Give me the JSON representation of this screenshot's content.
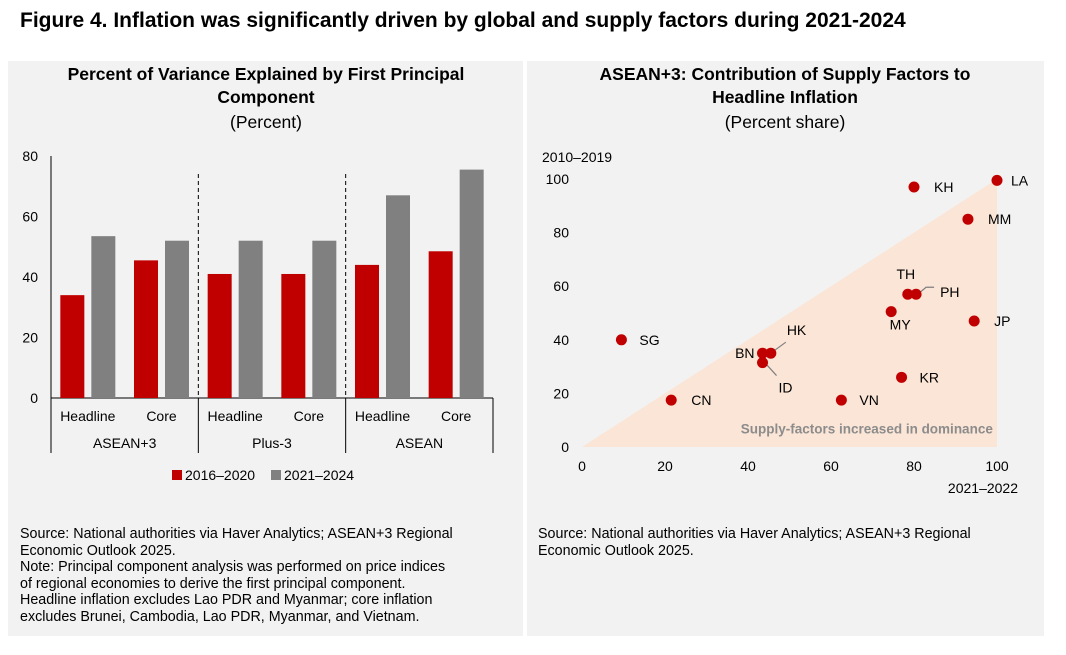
{
  "figure_title": "Figure 4. Inflation was significantly driven by global and supply factors during 2021-2024",
  "left": {
    "title_line1": "Percent of Variance Explained by First Principal",
    "title_line2": "Component",
    "subtitle": "(Percent)",
    "source_line1": "Source: National authorities via Haver Analytics; ASEAN+3 Regional",
    "source_line2": "Economic Outlook 2025.",
    "note_line1": "Note: Principal component analysis was performed on price indices",
    "note_line2": "of regional economies to derive the first principal component.",
    "note_line3": "Headline inflation excludes Lao PDR and Myanmar; core inflation",
    "note_line4": "excludes Brunei, Cambodia, Lao PDR, Myanmar, and Vietnam."
  },
  "right": {
    "title_line1": "ASEAN+3: Contribution of Supply Factors to",
    "title_line2": "Headline Inflation",
    "subtitle": "(Percent share)",
    "source_line1": "Source: National authorities via Haver Analytics; ASEAN+3 Regional",
    "source_line2": "Economic Outlook 2025."
  },
  "chart_data": [
    {
      "type": "bar",
      "title": "Percent of Variance Explained by First Principal Component",
      "ylabel": "(Percent)",
      "ylim": [
        0,
        80
      ],
      "yticks": [
        0,
        20,
        40,
        60,
        80
      ],
      "groups": [
        "ASEAN+3",
        "Plus-3",
        "ASEAN"
      ],
      "categories": [
        "Headline",
        "Core",
        "Headline",
        "Core",
        "Headline",
        "Core"
      ],
      "series": [
        {
          "name": "2016–2020",
          "color": "#c00000",
          "values": [
            34,
            45.5,
            41,
            41,
            44,
            48.5
          ]
        },
        {
          "name": "2021–2024",
          "color": "#808080",
          "values": [
            53.5,
            52,
            52,
            52,
            67,
            75.5
          ]
        }
      ],
      "legend": "bottom"
    },
    {
      "type": "scatter",
      "title": "ASEAN+3: Contribution of Supply Factors to Headline Inflation",
      "subtitle": "(Percent share)",
      "xlabel": "2021–2022",
      "ylabel": "2010–2019",
      "xlim": [
        0,
        100
      ],
      "ylim": [
        0,
        100
      ],
      "xticks": [
        0,
        20,
        40,
        60,
        80,
        100
      ],
      "yticks": [
        0,
        20,
        40,
        60,
        80,
        100
      ],
      "color": "#c00000",
      "shaded_region_label": "Supply-factors increased in dominance",
      "shaded_color": "#fbe5d6",
      "points": [
        {
          "label": "LA",
          "x": 100,
          "y": 99.5
        },
        {
          "label": "KH",
          "x": 80,
          "y": 97
        },
        {
          "label": "MM",
          "x": 93,
          "y": 85
        },
        {
          "label": "TH",
          "x": 78.5,
          "y": 57
        },
        {
          "label": "PH",
          "x": 80.5,
          "y": 57
        },
        {
          "label": "MY",
          "x": 74.5,
          "y": 50.5
        },
        {
          "label": "JP",
          "x": 94.5,
          "y": 47
        },
        {
          "label": "SG",
          "x": 9.5,
          "y": 40
        },
        {
          "label": "HK",
          "x": 45.5,
          "y": 35
        },
        {
          "label": "BN",
          "x": 43.5,
          "y": 35
        },
        {
          "label": "ID",
          "x": 43.5,
          "y": 31.5
        },
        {
          "label": "KR",
          "x": 77,
          "y": 26
        },
        {
          "label": "CN",
          "x": 21.5,
          "y": 17.5
        },
        {
          "label": "VN",
          "x": 62.5,
          "y": 17.5
        }
      ]
    }
  ]
}
